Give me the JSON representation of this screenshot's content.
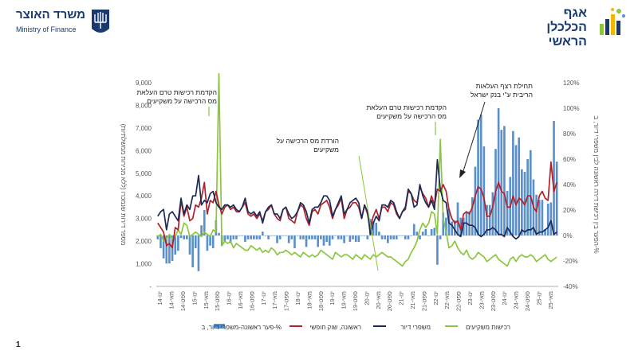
{
  "header": {
    "ministry_he": "משרד האוצר",
    "ministry_en": "Ministry of Finance",
    "dept_line1": "אגף",
    "dept_line2": "הכלכלן הראשי"
  },
  "page_number": "1",
  "colors": {
    "gap_bars": "#5b8fc9",
    "first_home": "#b3202a",
    "mortgages": "#1c2a56",
    "investors": "#8cc63f",
    "brand": "#1a3a6e"
  },
  "chart_data": {
    "type": "line",
    "left_axis": {
      "label": "מספר דירות שנמכרו (ללא מכירות ממשלתיות)",
      "min": 0,
      "max": 9000,
      "ticks": [
        "-",
        "1,000",
        "2,000",
        "3,000",
        "4,000",
        "5,000",
        "6,000",
        "7,000",
        "8,000",
        "9,000"
      ]
    },
    "right_axis": {
      "label": "הפער בין רכישת דירה ראשונה לבין משפרי דיור, ב-%",
      "min": -40,
      "max": 120,
      "ticks": [
        "-40%",
        "-20%",
        "0%",
        "20%",
        "40%",
        "60%",
        "80%",
        "100%",
        "120%"
      ]
    },
    "x_labels": [
      "ינו-14",
      "מאי-14",
      "ספט-14",
      "ינו-15",
      "מאי-15",
      "ספט-15",
      "ינו-16",
      "מאי-16",
      "ספט-16",
      "ינו-17",
      "מאי-17",
      "ספט-17",
      "ינו-18",
      "מאי-18",
      "ספט-18",
      "ינו-19",
      "מאי-19",
      "ספט-19",
      "ינו-20",
      "מאי-20",
      "ספט-20",
      "ינו-21",
      "מאי-21",
      "ספט-21",
      "ינו-22",
      "מאי-22",
      "ספט-22",
      "ינו-23",
      "מאי-23",
      "ספט-23",
      "ינו-24",
      "מאי-24",
      "ספט-24",
      "ינו-25",
      "מאי-25"
    ],
    "months": 138,
    "series": [
      {
        "name": "ראשונה, שוק חופשי",
        "values": [
          2800,
          2600,
          2400,
          1800,
          1900,
          1700,
          2600,
          2500,
          3800,
          3100,
          3500,
          2900,
          3000,
          3600,
          3500,
          3900,
          4600,
          3200,
          3800,
          3700,
          4200,
          3600,
          3200,
          3500,
          3600,
          3400,
          3500,
          3300,
          3300,
          3500,
          3700,
          3200,
          3100,
          3200,
          3000,
          3200,
          2900,
          3300,
          3400,
          3600,
          3200,
          3000,
          2900,
          3400,
          3500,
          3000,
          2900,
          2800,
          3300,
          3600,
          3500,
          3000,
          2700,
          3300,
          3400,
          3200,
          3600,
          3700,
          3800,
          3500,
          3000,
          3400,
          3600,
          3900,
          3000,
          3400,
          3500,
          3700,
          3700,
          3500,
          3000,
          3600,
          3200,
          2600,
          3100,
          3400,
          3000,
          3500,
          3500,
          3300,
          3700,
          3600,
          3200,
          3000,
          3300,
          3400,
          4200,
          4100,
          3800,
          3700,
          4400,
          4100,
          3900,
          3500,
          4000,
          3600,
          4300,
          4200,
          4500,
          4200,
          3400,
          3000,
          2800,
          2900,
          2500,
          3200,
          3300,
          3200,
          3500,
          4000,
          4400,
          4300,
          3900,
          3100,
          3100,
          3500,
          4200,
          4600,
          4200,
          4100,
          3500,
          3500,
          4000,
          3600,
          3900,
          3800,
          3600,
          4000,
          4000,
          3500,
          3300,
          4000,
          4200,
          3900,
          3800,
          5500,
          4200,
          4600
        ]
      },
      {
        "name": "משפרי דיור",
        "values": [
          3100,
          3300,
          3400,
          2500,
          3200,
          3300,
          3100,
          2900,
          3900,
          3200,
          3600,
          3400,
          4000,
          4000,
          4900,
          3600,
          3800,
          3700,
          4100,
          4200,
          3700,
          3500,
          3400,
          3600,
          3600,
          3500,
          3600,
          3400,
          3300,
          3500,
          3900,
          3300,
          3200,
          3300,
          3100,
          3300,
          2800,
          3300,
          3500,
          3600,
          3200,
          3200,
          3000,
          3400,
          3500,
          3200,
          3000,
          3100,
          3300,
          3700,
          3600,
          3300,
          2800,
          3400,
          3500,
          3500,
          3700,
          4000,
          4000,
          3800,
          3100,
          3400,
          3700,
          4000,
          3200,
          3400,
          3700,
          3800,
          3900,
          3700,
          3000,
          3600,
          3300,
          2300,
          2800,
          3100,
          2900,
          3600,
          3600,
          3500,
          3800,
          3700,
          3300,
          3000,
          3300,
          3500,
          4300,
          4100,
          3500,
          3600,
          4500,
          4000,
          3700,
          3500,
          3800,
          3400,
          5600,
          4300,
          3800,
          3700,
          2800,
          2700,
          2500,
          2300,
          2200,
          2800,
          2800,
          2700,
          2700,
          2600,
          2300,
          2200,
          2300,
          2500,
          2500,
          2600,
          2500,
          2300,
          2300,
          2200,
          2600,
          2400,
          2200,
          2100,
          2200,
          2500,
          2400,
          2500,
          2500,
          2600,
          2300,
          2400,
          2400,
          2500,
          2600,
          2900,
          2300,
          2400
        ]
      },
      {
        "name": "רכישות משקיעים",
        "values": [
          2200,
          2300,
          2000,
          2100,
          2300,
          2100,
          2200,
          2500,
          2300,
          2800,
          2700,
          2200,
          2300,
          2400,
          2300,
          2200,
          2400,
          2300,
          2200,
          2500,
          2400,
          9400,
          1800,
          2000,
          1900,
          2000,
          1700,
          1900,
          1800,
          1700,
          1600,
          1600,
          1800,
          1700,
          1600,
          1700,
          1500,
          1600,
          1500,
          1700,
          1600,
          1400,
          1500,
          1500,
          1600,
          1500,
          1400,
          1500,
          1400,
          1300,
          1500,
          1400,
          1300,
          1400,
          1300,
          1400,
          1600,
          1500,
          1400,
          1300,
          1200,
          1500,
          1400,
          1300,
          1400,
          1400,
          1300,
          1200,
          1400,
          1300,
          1200,
          1400,
          1300,
          1200,
          1400,
          1300,
          1400,
          1500,
          1400,
          1300,
          1300,
          1200,
          1100,
          1000,
          900,
          1100,
          1200,
          1500,
          1700,
          2000,
          2500,
          2800,
          2600,
          2800,
          3300,
          3200,
          2300,
          6500,
          3000,
          2400,
          1700,
          1800,
          2000,
          1700,
          1500,
          1400,
          1600,
          1300,
          1200,
          1300,
          1500,
          1400,
          1300,
          1100,
          1200,
          1300,
          1400,
          1200,
          1100,
          1000,
          900,
          1200,
          1300,
          1100,
          1300,
          1400,
          1300,
          1300,
          1400,
          1300,
          1100,
          1200,
          1300,
          1400,
          1200,
          1100,
          1200,
          1300
        ]
      }
    ],
    "bar_series": {
      "name": "פער ראשונה-משפרי דיור, ב-%",
      "axis": "right",
      "values": [
        -3,
        -10,
        -18,
        -22,
        -22,
        -20,
        -15,
        -12,
        -2,
        -3,
        -3,
        -15,
        -25,
        -10,
        -28,
        8,
        20,
        -12,
        -8,
        -10,
        12,
        2,
        -8,
        -5,
        -3,
        -6,
        -3,
        -3,
        0,
        0,
        -5,
        -3,
        -3,
        -3,
        -3,
        -3,
        3,
        0,
        -3,
        0,
        0,
        -6,
        -3,
        0,
        0,
        -6,
        -3,
        -10,
        0,
        -3,
        -3,
        -9,
        -3,
        -3,
        -3,
        -9,
        -3,
        -8,
        -5,
        -8,
        -3,
        0,
        -3,
        -3,
        -6,
        0,
        -5,
        -3,
        -5,
        -5,
        0,
        0,
        -3,
        13,
        11,
        10,
        3,
        -3,
        -3,
        -6,
        -3,
        -3,
        -3,
        0,
        0,
        -3,
        -3,
        0,
        9,
        3,
        -3,
        3,
        5,
        0,
        5,
        6,
        -23,
        -3,
        18,
        14,
        21,
        11,
        12,
        26,
        14,
        14,
        18,
        19,
        30,
        54,
        91,
        95,
        70,
        24,
        24,
        34,
        68,
        100,
        83,
        86,
        35,
        46,
        82,
        71,
        77,
        52,
        50,
        60,
        67,
        44,
        32,
        28,
        28,
        5,
        25,
        26,
        90,
        58
      ]
    },
    "annotations": [
      {
        "line1": "הקדמת רכישות טרם העלאת",
        "line2": "מס הרכישה על משקיעים"
      },
      {
        "line1": "הורדת מס הרכישה על",
        "line2": "משקיעים"
      },
      {
        "line1": "הקדמת רכישות טרם העלאת",
        "line2": "מס הרכישה על משקיעים"
      },
      {
        "line1": "תחילת רצף העלאות",
        "line2": "הריבית ע\"י בנק ישראל"
      }
    ],
    "legend_position": "bottom"
  }
}
